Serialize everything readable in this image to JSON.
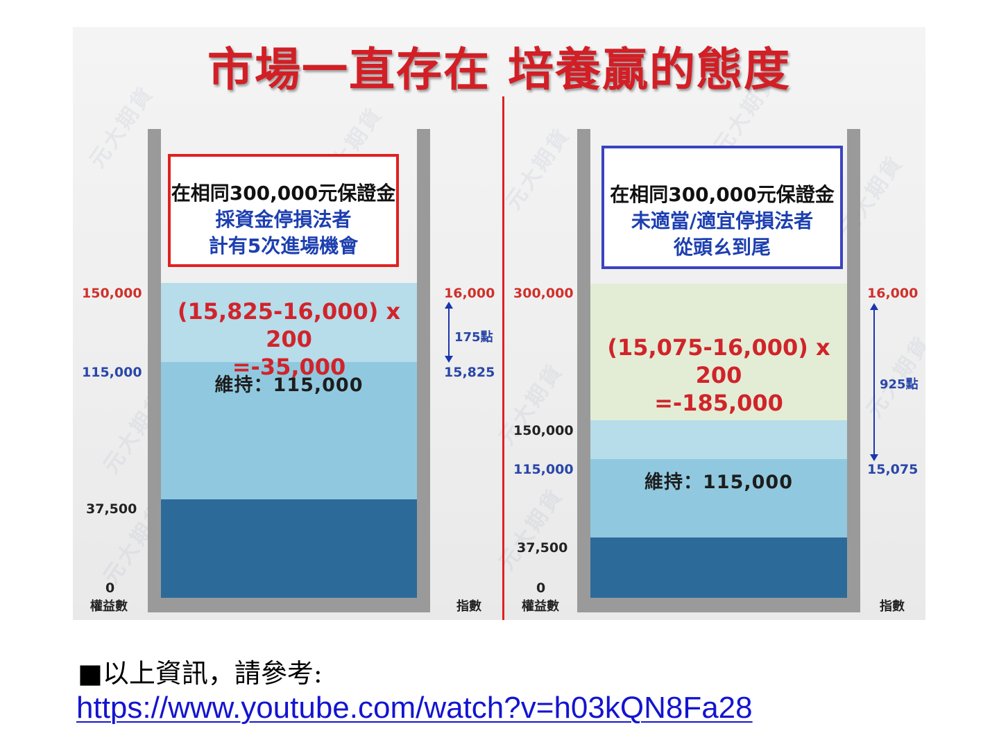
{
  "slide": {
    "title": "市場一直存在  培養贏的態度",
    "watermark": "元大期貨",
    "colors": {
      "title": "#d21f26",
      "divider": "#e02020",
      "tank_wall": "#9a9a9a",
      "loss_segment_left": "#b7dcea",
      "loss_segment_right": "#e3edd6",
      "mid_segment": "#90c9df",
      "margin_segment_light": "#b7dcea",
      "base_segment": "#2c6b99",
      "red_box": "#e02020",
      "blue_box": "#3b43c0"
    },
    "left": {
      "box_line1": "在相同300,000元保證金",
      "box_line2": "採資金停損法者",
      "box_line3": "計有5次進場機會",
      "equity_150000": "150,000",
      "equity_115000": "115,000",
      "equity_37500": "37,500",
      "equity_0": "0",
      "equity_axis": "權益數",
      "index_16000": "16,000",
      "index_15825": "15,825",
      "index_axis": "指數",
      "points": "175點",
      "formula_line1": "(15,825-16,000) x 200",
      "formula_line2": "=-35,000",
      "maintenance": "維持：115,000"
    },
    "right": {
      "box_line1": "在相同300,000元保證金",
      "box_line2": "未適當/適宜停損法者",
      "box_line3": "從頭ㄠ到尾",
      "equity_300000": "300,000",
      "equity_150000": "150,000",
      "equity_115000": "115,000",
      "equity_37500": "37,500",
      "equity_0": "0",
      "equity_axis": "權益數",
      "index_16000": "16,000",
      "index_15075": "15,075",
      "index_axis": "指數",
      "points": "925點",
      "formula_line1": "(15,075-16,000) x 200",
      "formula_line2": "=-185,000",
      "maintenance": "維持：115,000"
    }
  },
  "footer": {
    "note": "■以上資訊，請參考:",
    "link": "https://www.youtube.com/watch?v=h03kQN8Fa28"
  }
}
